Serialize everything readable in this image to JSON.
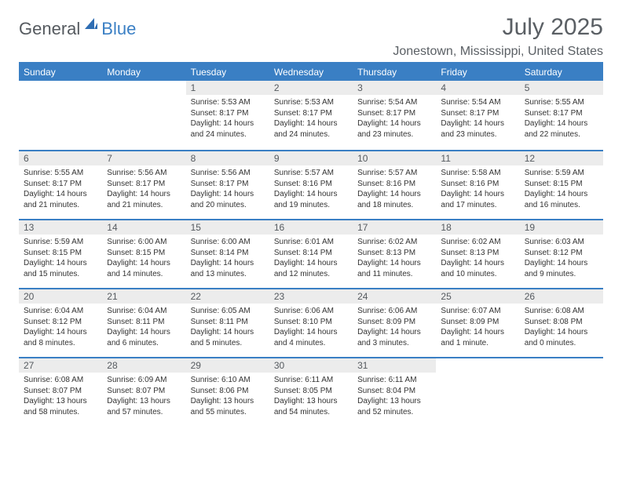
{
  "logo": {
    "text1": "General",
    "text2": "Blue"
  },
  "title": "July 2025",
  "location": "Jonestown, Mississippi, United States",
  "colors": {
    "accent": "#3a7fc4",
    "header_text": "#ffffff",
    "day_header_bg": "#ececec",
    "text_muted": "#5a5f64",
    "body_text": "#333333"
  },
  "weekdays": [
    "Sunday",
    "Monday",
    "Tuesday",
    "Wednesday",
    "Thursday",
    "Friday",
    "Saturday"
  ],
  "first_weekday_index": 2,
  "days": [
    {
      "n": 1,
      "sunrise": "5:53 AM",
      "sunset": "8:17 PM",
      "daylight": "14 hours and 24 minutes."
    },
    {
      "n": 2,
      "sunrise": "5:53 AM",
      "sunset": "8:17 PM",
      "daylight": "14 hours and 24 minutes."
    },
    {
      "n": 3,
      "sunrise": "5:54 AM",
      "sunset": "8:17 PM",
      "daylight": "14 hours and 23 minutes."
    },
    {
      "n": 4,
      "sunrise": "5:54 AM",
      "sunset": "8:17 PM",
      "daylight": "14 hours and 23 minutes."
    },
    {
      "n": 5,
      "sunrise": "5:55 AM",
      "sunset": "8:17 PM",
      "daylight": "14 hours and 22 minutes."
    },
    {
      "n": 6,
      "sunrise": "5:55 AM",
      "sunset": "8:17 PM",
      "daylight": "14 hours and 21 minutes."
    },
    {
      "n": 7,
      "sunrise": "5:56 AM",
      "sunset": "8:17 PM",
      "daylight": "14 hours and 21 minutes."
    },
    {
      "n": 8,
      "sunrise": "5:56 AM",
      "sunset": "8:17 PM",
      "daylight": "14 hours and 20 minutes."
    },
    {
      "n": 9,
      "sunrise": "5:57 AM",
      "sunset": "8:16 PM",
      "daylight": "14 hours and 19 minutes."
    },
    {
      "n": 10,
      "sunrise": "5:57 AM",
      "sunset": "8:16 PM",
      "daylight": "14 hours and 18 minutes."
    },
    {
      "n": 11,
      "sunrise": "5:58 AM",
      "sunset": "8:16 PM",
      "daylight": "14 hours and 17 minutes."
    },
    {
      "n": 12,
      "sunrise": "5:59 AM",
      "sunset": "8:15 PM",
      "daylight": "14 hours and 16 minutes."
    },
    {
      "n": 13,
      "sunrise": "5:59 AM",
      "sunset": "8:15 PM",
      "daylight": "14 hours and 15 minutes."
    },
    {
      "n": 14,
      "sunrise": "6:00 AM",
      "sunset": "8:15 PM",
      "daylight": "14 hours and 14 minutes."
    },
    {
      "n": 15,
      "sunrise": "6:00 AM",
      "sunset": "8:14 PM",
      "daylight": "14 hours and 13 minutes."
    },
    {
      "n": 16,
      "sunrise": "6:01 AM",
      "sunset": "8:14 PM",
      "daylight": "14 hours and 12 minutes."
    },
    {
      "n": 17,
      "sunrise": "6:02 AM",
      "sunset": "8:13 PM",
      "daylight": "14 hours and 11 minutes."
    },
    {
      "n": 18,
      "sunrise": "6:02 AM",
      "sunset": "8:13 PM",
      "daylight": "14 hours and 10 minutes."
    },
    {
      "n": 19,
      "sunrise": "6:03 AM",
      "sunset": "8:12 PM",
      "daylight": "14 hours and 9 minutes."
    },
    {
      "n": 20,
      "sunrise": "6:04 AM",
      "sunset": "8:12 PM",
      "daylight": "14 hours and 8 minutes."
    },
    {
      "n": 21,
      "sunrise": "6:04 AM",
      "sunset": "8:11 PM",
      "daylight": "14 hours and 6 minutes."
    },
    {
      "n": 22,
      "sunrise": "6:05 AM",
      "sunset": "8:11 PM",
      "daylight": "14 hours and 5 minutes."
    },
    {
      "n": 23,
      "sunrise": "6:06 AM",
      "sunset": "8:10 PM",
      "daylight": "14 hours and 4 minutes."
    },
    {
      "n": 24,
      "sunrise": "6:06 AM",
      "sunset": "8:09 PM",
      "daylight": "14 hours and 3 minutes."
    },
    {
      "n": 25,
      "sunrise": "6:07 AM",
      "sunset": "8:09 PM",
      "daylight": "14 hours and 1 minute."
    },
    {
      "n": 26,
      "sunrise": "6:08 AM",
      "sunset": "8:08 PM",
      "daylight": "14 hours and 0 minutes."
    },
    {
      "n": 27,
      "sunrise": "6:08 AM",
      "sunset": "8:07 PM",
      "daylight": "13 hours and 58 minutes."
    },
    {
      "n": 28,
      "sunrise": "6:09 AM",
      "sunset": "8:07 PM",
      "daylight": "13 hours and 57 minutes."
    },
    {
      "n": 29,
      "sunrise": "6:10 AM",
      "sunset": "8:06 PM",
      "daylight": "13 hours and 55 minutes."
    },
    {
      "n": 30,
      "sunrise": "6:11 AM",
      "sunset": "8:05 PM",
      "daylight": "13 hours and 54 minutes."
    },
    {
      "n": 31,
      "sunrise": "6:11 AM",
      "sunset": "8:04 PM",
      "daylight": "13 hours and 52 minutes."
    }
  ],
  "labels": {
    "sunrise": "Sunrise:",
    "sunset": "Sunset:",
    "daylight": "Daylight:"
  }
}
